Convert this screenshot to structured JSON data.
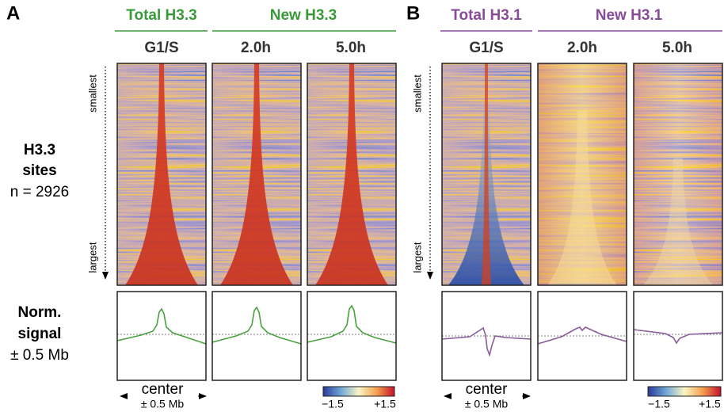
{
  "panel_a": {
    "label": "A",
    "group_1": {
      "title": "Total H3.3",
      "columns": [
        "G1/S"
      ]
    },
    "group_2": {
      "title": "New H3.3",
      "columns": [
        "2.0h",
        "5.0h"
      ]
    },
    "order_top": "smallest",
    "order_bottom": "largest",
    "sites": [
      "H3.3",
      "sites"
    ],
    "count": "n = 2926",
    "profile_label": [
      "Norm.",
      "signal",
      "± 0.5 Mb"
    ],
    "x_label": "center",
    "x_range": "± 0.5 Mb",
    "colorbar": [
      "−1.5",
      "+1.5"
    ]
  },
  "panel_b": {
    "label": "B",
    "group_1": {
      "title": "Total H3.1",
      "columns": [
        "G1/S"
      ]
    },
    "group_2": {
      "title": "New H3.1",
      "columns": [
        "2.0h",
        "5.0h"
      ]
    },
    "order_top": "smallest",
    "order_bottom": "largest",
    "x_label": "center",
    "x_range": "± 0.5 Mb",
    "colorbar": [
      "−1.5",
      "+1.5"
    ]
  }
}
